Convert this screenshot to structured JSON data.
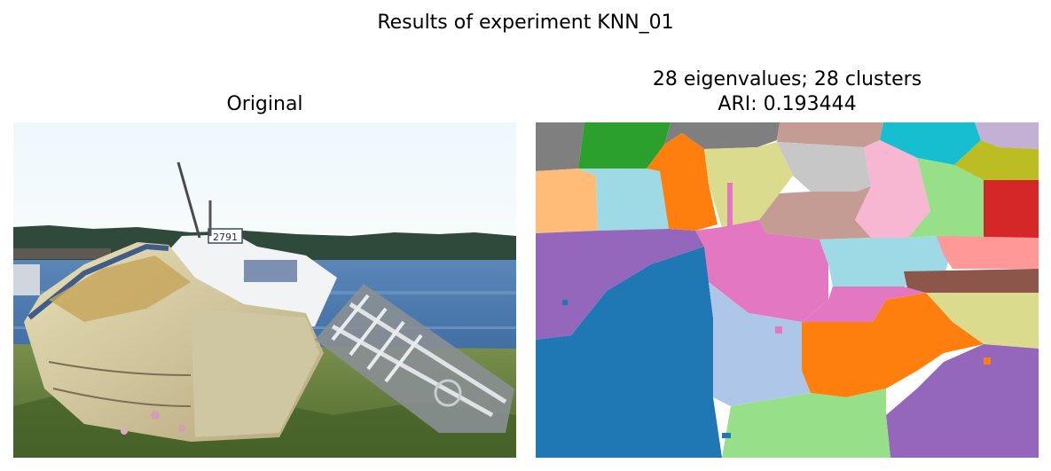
{
  "figure": {
    "suptitle": "Results of experiment KNN_01",
    "left_panel": {
      "title": "Original"
    },
    "right_panel": {
      "title_line1": "28 eigenvalues; 28 clusters",
      "title_line2": "ARI: 0.193444"
    }
  },
  "segmentation": {
    "eigenvalues": 28,
    "clusters": 28,
    "ari": 0.193444,
    "palette": [
      "#1f77b4",
      "#aec7e8",
      "#ff7f0e",
      "#ffbb78",
      "#2ca02c",
      "#98df8a",
      "#d62728",
      "#ff9896",
      "#9467bd",
      "#c5b0d5",
      "#8c564b",
      "#c49c94",
      "#e377c2",
      "#f7b6d2",
      "#7f7f7f",
      "#c7c7c7",
      "#bcbd22",
      "#dbdb8d",
      "#17becf",
      "#9edae5"
    ]
  },
  "photo": {
    "boat_number": "2791"
  }
}
